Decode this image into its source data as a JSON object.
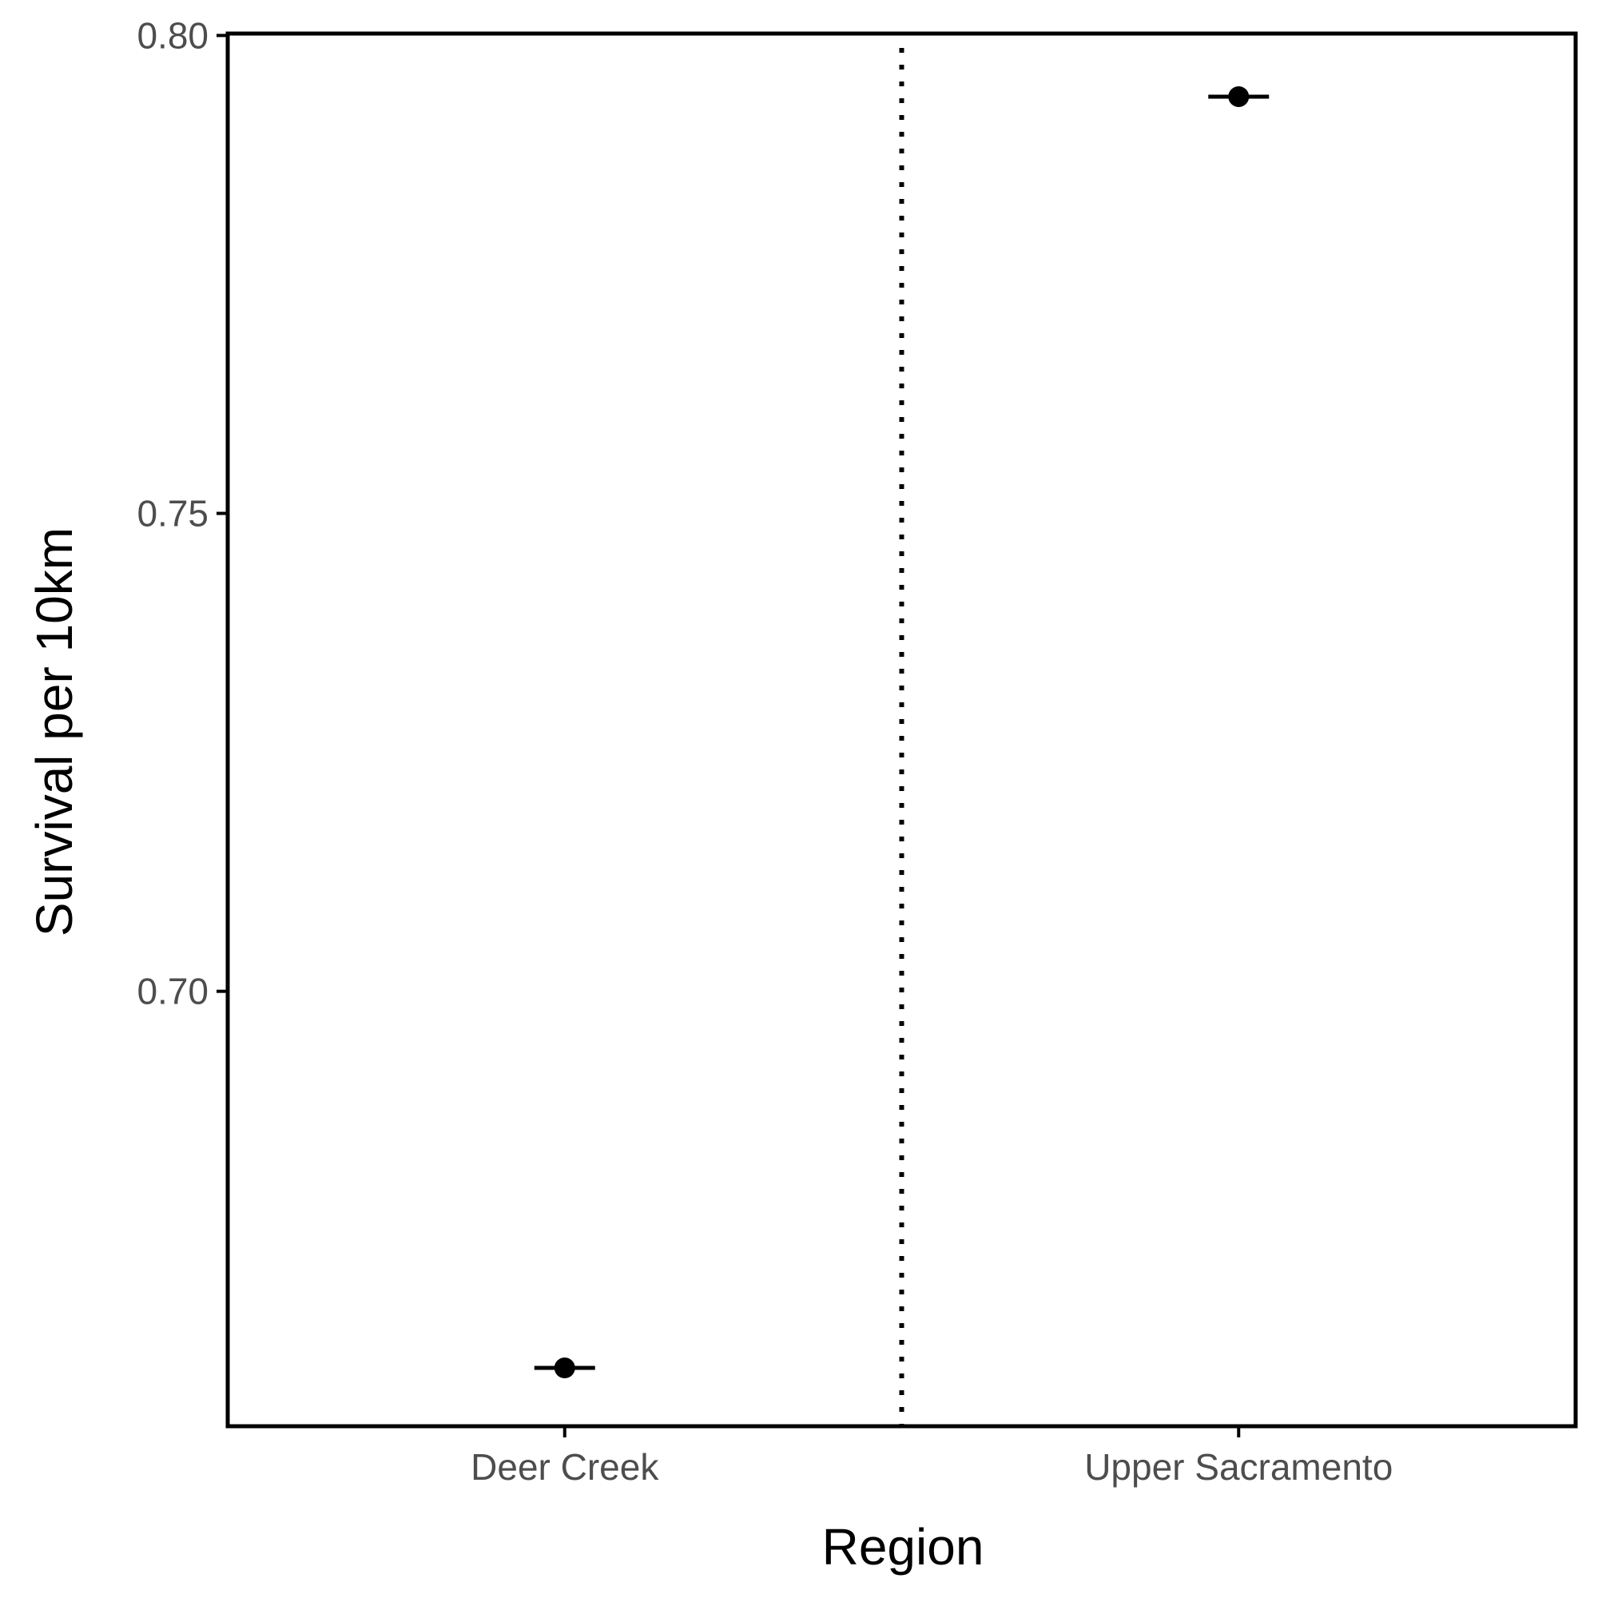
{
  "chart_data": {
    "type": "scatter",
    "title": "",
    "xlabel": "Region",
    "ylabel": "Survival per 10km",
    "categories": [
      "Deer Creek",
      "Upper Sacramento"
    ],
    "values": [
      0.6606,
      0.7936
    ],
    "ylim": [
      0.6545,
      0.8002
    ],
    "yticks": [
      0.7,
      0.75,
      0.8
    ],
    "ytick_labels": [
      "0.70",
      "0.75",
      "0.80"
    ],
    "separator_between": [
      "Deer Creek",
      "Upper Sacramento"
    ],
    "grid": false,
    "legend": "none",
    "colors": {
      "points": "#000000",
      "tick_text": "#4d4d4d",
      "axis": "#000000"
    }
  }
}
